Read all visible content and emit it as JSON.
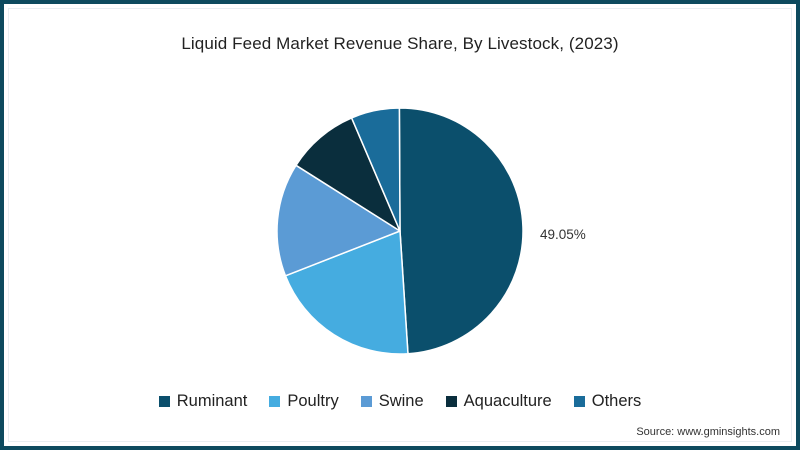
{
  "chart_data": {
    "type": "pie",
    "title": "Liquid Feed Market Revenue Share, By Livestock, (2023)",
    "categories": [
      "Ruminant",
      "Poultry",
      "Swine",
      "Aquaculture",
      "Others"
    ],
    "values": [
      49.05,
      20.1,
      14.9,
      9.6,
      6.35
    ],
    "colors": [
      "#0b4f6c",
      "#45ace0",
      "#5b9bd5",
      "#0a2e3d",
      "#1a6c9a"
    ],
    "data_labels": [
      {
        "category": "Ruminant",
        "text": "49.05%"
      }
    ],
    "legend_position": "bottom",
    "start_angle_deg": -0.3,
    "direction": "clockwise"
  },
  "title": "Liquid Feed Market Revenue Share, By Livestock, (2023)",
  "label_ruminant": "49.05%",
  "legend": [
    {
      "label": "Ruminant",
      "color": "#0b4f6c"
    },
    {
      "label": "Poultry",
      "color": "#45ace0"
    },
    {
      "label": "Swine",
      "color": "#5b9bd5"
    },
    {
      "label": "Aquaculture",
      "color": "#0a2e3d"
    },
    {
      "label": "Others",
      "color": "#1a6c9a"
    }
  ],
  "source": "Source: www.gminsights.com",
  "frame_color": "#0d4a5e"
}
